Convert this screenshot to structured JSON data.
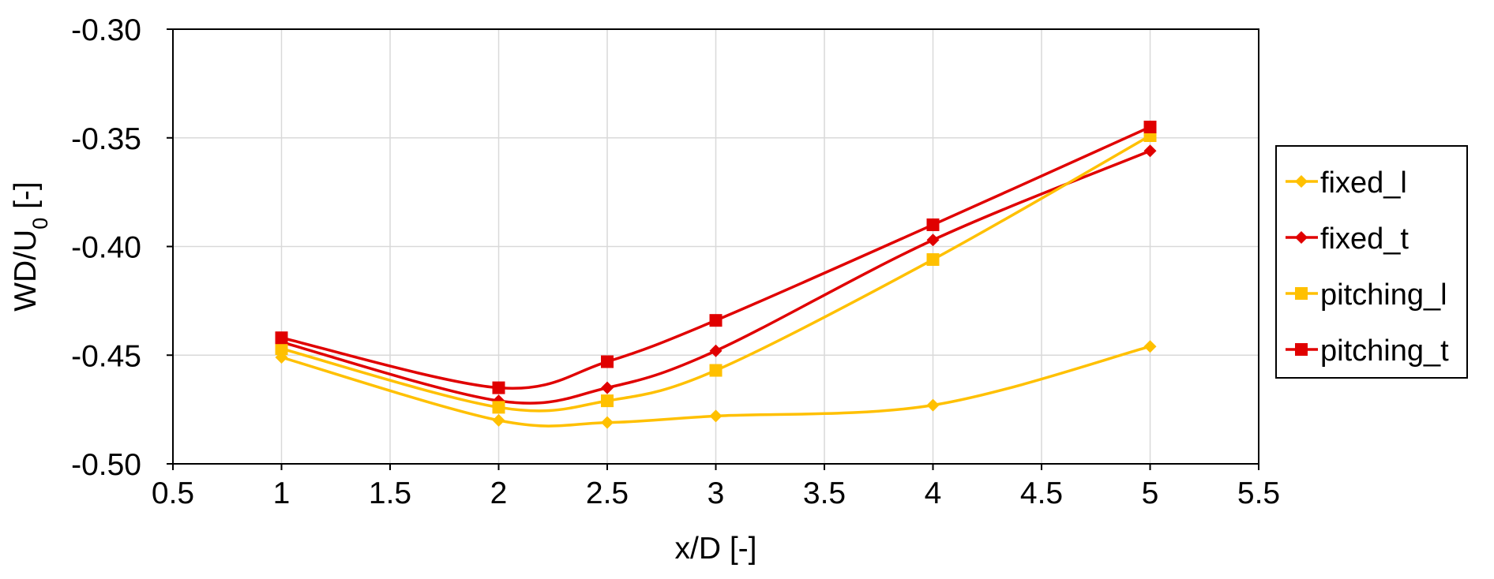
{
  "chart_data": {
    "type": "line",
    "xlabel": "x/D  [-]",
    "ylabel": {
      "main": "WD/U",
      "sub": "0",
      "suffix": " [-]"
    },
    "xlim": [
      0.5,
      5.5
    ],
    "ylim": [
      -0.5,
      -0.3
    ],
    "xticks": [
      "0.5",
      "1",
      "1.5",
      "2",
      "2.5",
      "3",
      "3.5",
      "4",
      "4.5",
      "5",
      "5.5"
    ],
    "yticks": [
      "-0.30",
      "-0.35",
      "-0.40",
      "-0.45",
      "-0.50"
    ],
    "grid": true,
    "legend_position": "right",
    "x": [
      1,
      2,
      2.5,
      3,
      4,
      5
    ],
    "series": [
      {
        "name": "fixed_l",
        "color": "#FFC000",
        "marker": "diamond",
        "values": [
          -0.451,
          -0.48,
          -0.481,
          -0.478,
          -0.473,
          -0.446
        ]
      },
      {
        "name": "fixed_t",
        "color": "#E00000",
        "marker": "diamond",
        "values": [
          -0.444,
          -0.471,
          -0.465,
          -0.448,
          -0.397,
          -0.356
        ]
      },
      {
        "name": "pitching_l",
        "color": "#FFC000",
        "marker": "square",
        "values": [
          -0.447,
          -0.474,
          -0.471,
          -0.457,
          -0.406,
          -0.349
        ]
      },
      {
        "name": "pitching_t",
        "color": "#E00000",
        "marker": "square",
        "values": [
          -0.442,
          -0.465,
          -0.453,
          -0.434,
          -0.39,
          -0.345
        ]
      }
    ]
  }
}
